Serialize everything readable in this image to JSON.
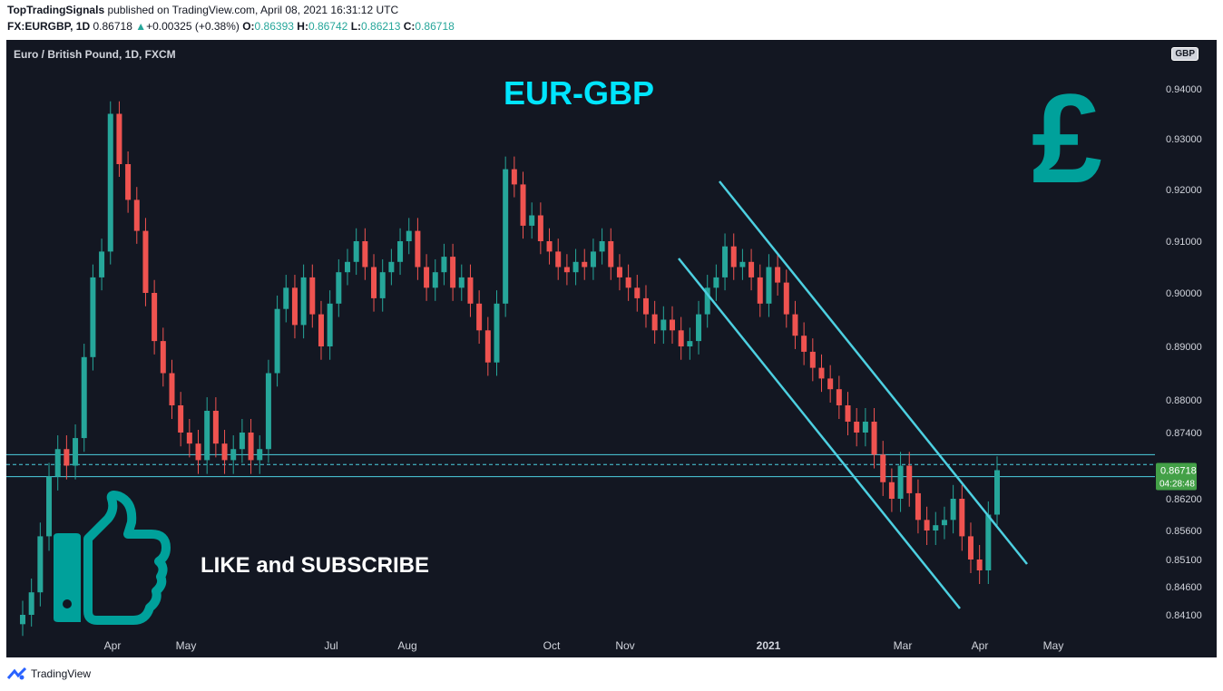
{
  "header": {
    "publisher": "TopTradingSignals",
    "published_text": " published on TradingView.com, April 08, 2021 16:31:12 UTC",
    "symbol_line": "FX:EURGBP, 1D",
    "last": "0.86718",
    "change": "+0.00325 (+0.38%)",
    "open_label": "O:",
    "open": "0.86393",
    "high_label": "H:",
    "high": "0.86742",
    "low_label": "L:",
    "low": "0.86213",
    "close_label": "C:",
    "close": "0.86718"
  },
  "chart_header": {
    "symbol_desc": "Euro / British Pound, 1D, FXCM",
    "currency_badge": "GBP"
  },
  "overlay": {
    "title": "EUR-GBP",
    "pound_symbol": "£",
    "cta": "LIKE and SUBSCRIBE"
  },
  "price_label": {
    "value": "0.86718",
    "countdown": "04:28:48"
  },
  "footer": {
    "brand": "TradingView"
  },
  "colors": {
    "bg": "#131722",
    "up": "#26a69a",
    "down": "#ef5350",
    "channel": "#4dd0e1",
    "title": "#00e5ff",
    "pound": "#00a19b",
    "thumb": "#00a19b"
  },
  "chart_data": {
    "type": "candlestick",
    "title": "EUR-GBP",
    "xlabel": "",
    "ylabel": "",
    "y_tick_labels": [
      "0.94000",
      "0.93000",
      "0.92000",
      "0.91000",
      "0.90000",
      "0.89000",
      "0.88000",
      "0.87400",
      "0.86200",
      "0.85600",
      "0.85100",
      "0.84600",
      "0.84100"
    ],
    "x_tick_labels": [
      "Apr",
      "May",
      "Jul",
      "Aug",
      "Oct",
      "Nov",
      "2021",
      "Mar",
      "Apr",
      "May"
    ],
    "series": [
      {
        "values": [
          {
            "t": 1,
            "c": 0.841
          },
          {
            "t": 2,
            "c": 0.845
          },
          {
            "t": 3,
            "c": 0.855
          },
          {
            "t": 4,
            "c": 0.866
          },
          {
            "t": 5,
            "c": 0.871
          },
          {
            "t": 6,
            "c": 0.868
          },
          {
            "t": 7,
            "c": 0.873
          },
          {
            "t": 8,
            "c": 0.888
          },
          {
            "t": 9,
            "c": 0.903
          },
          {
            "t": 10,
            "c": 0.908
          },
          {
            "t": 11,
            "c": 0.935
          },
          {
            "t": 12,
            "c": 0.925
          },
          {
            "t": 13,
            "c": 0.918
          },
          {
            "t": 14,
            "c": 0.912
          },
          {
            "t": 15,
            "c": 0.9
          },
          {
            "t": 16,
            "c": 0.891
          },
          {
            "t": 17,
            "c": 0.885
          },
          {
            "t": 18,
            "c": 0.879
          },
          {
            "t": 19,
            "c": 0.874
          },
          {
            "t": 20,
            "c": 0.872
          },
          {
            "t": 21,
            "c": 0.869
          },
          {
            "t": 22,
            "c": 0.878
          },
          {
            "t": 23,
            "c": 0.872
          },
          {
            "t": 24,
            "c": 0.869
          },
          {
            "t": 25,
            "c": 0.871
          },
          {
            "t": 26,
            "c": 0.874
          },
          {
            "t": 27,
            "c": 0.869
          },
          {
            "t": 28,
            "c": 0.871
          },
          {
            "t": 29,
            "c": 0.885
          },
          {
            "t": 30,
            "c": 0.897
          },
          {
            "t": 31,
            "c": 0.901
          },
          {
            "t": 32,
            "c": 0.894
          },
          {
            "t": 33,
            "c": 0.903
          },
          {
            "t": 34,
            "c": 0.896
          },
          {
            "t": 35,
            "c": 0.89
          },
          {
            "t": 36,
            "c": 0.898
          },
          {
            "t": 37,
            "c": 0.904
          },
          {
            "t": 38,
            "c": 0.906
          },
          {
            "t": 39,
            "c": 0.91
          },
          {
            "t": 40,
            "c": 0.905
          },
          {
            "t": 41,
            "c": 0.899
          },
          {
            "t": 42,
            "c": 0.904
          },
          {
            "t": 43,
            "c": 0.906
          },
          {
            "t": 44,
            "c": 0.91
          },
          {
            "t": 45,
            "c": 0.912
          },
          {
            "t": 46,
            "c": 0.905
          },
          {
            "t": 47,
            "c": 0.901
          },
          {
            "t": 48,
            "c": 0.904
          },
          {
            "t": 49,
            "c": 0.907
          },
          {
            "t": 50,
            "c": 0.901
          },
          {
            "t": 51,
            "c": 0.903
          },
          {
            "t": 52,
            "c": 0.898
          },
          {
            "t": 53,
            "c": 0.893
          },
          {
            "t": 54,
            "c": 0.887
          },
          {
            "t": 55,
            "c": 0.898
          },
          {
            "t": 56,
            "c": 0.924
          },
          {
            "t": 57,
            "c": 0.921
          },
          {
            "t": 58,
            "c": 0.913
          },
          {
            "t": 59,
            "c": 0.915
          },
          {
            "t": 60,
            "c": 0.91
          },
          {
            "t": 61,
            "c": 0.908
          },
          {
            "t": 62,
            "c": 0.905
          },
          {
            "t": 63,
            "c": 0.904
          },
          {
            "t": 64,
            "c": 0.906
          },
          {
            "t": 65,
            "c": 0.905
          },
          {
            "t": 66,
            "c": 0.908
          },
          {
            "t": 67,
            "c": 0.91
          },
          {
            "t": 68,
            "c": 0.905
          },
          {
            "t": 69,
            "c": 0.903
          },
          {
            "t": 70,
            "c": 0.901
          },
          {
            "t": 71,
            "c": 0.899
          },
          {
            "t": 72,
            "c": 0.896
          },
          {
            "t": 73,
            "c": 0.893
          },
          {
            "t": 74,
            "c": 0.895
          },
          {
            "t": 75,
            "c": 0.893
          },
          {
            "t": 76,
            "c": 0.89
          },
          {
            "t": 77,
            "c": 0.891
          },
          {
            "t": 78,
            "c": 0.896
          },
          {
            "t": 79,
            "c": 0.901
          },
          {
            "t": 80,
            "c": 0.903
          },
          {
            "t": 81,
            "c": 0.909
          },
          {
            "t": 82,
            "c": 0.905
          },
          {
            "t": 83,
            "c": 0.906
          },
          {
            "t": 84,
            "c": 0.903
          },
          {
            "t": 85,
            "c": 0.898
          },
          {
            "t": 86,
            "c": 0.905
          },
          {
            "t": 87,
            "c": 0.902
          },
          {
            "t": 88,
            "c": 0.896
          },
          {
            "t": 89,
            "c": 0.892
          },
          {
            "t": 90,
            "c": 0.889
          },
          {
            "t": 91,
            "c": 0.886
          },
          {
            "t": 92,
            "c": 0.884
          },
          {
            "t": 93,
            "c": 0.882
          },
          {
            "t": 94,
            "c": 0.879
          },
          {
            "t": 95,
            "c": 0.876
          },
          {
            "t": 96,
            "c": 0.874
          },
          {
            "t": 97,
            "c": 0.876
          },
          {
            "t": 98,
            "c": 0.87
          },
          {
            "t": 99,
            "c": 0.865
          },
          {
            "t": 100,
            "c": 0.862
          },
          {
            "t": 101,
            "c": 0.868
          },
          {
            "t": 102,
            "c": 0.863
          },
          {
            "t": 103,
            "c": 0.858
          },
          {
            "t": 104,
            "c": 0.856
          },
          {
            "t": 105,
            "c": 0.857
          },
          {
            "t": 106,
            "c": 0.858
          },
          {
            "t": 107,
            "c": 0.862
          },
          {
            "t": 108,
            "c": 0.855
          },
          {
            "t": 109,
            "c": 0.851
          },
          {
            "t": 110,
            "c": 0.849
          },
          {
            "t": 111,
            "c": 0.859
          },
          {
            "t": 112,
            "c": 0.86718
          }
        ]
      }
    ],
    "annotations": [
      "descending channel",
      "horizontal zone 0.8660–0.8700"
    ]
  }
}
